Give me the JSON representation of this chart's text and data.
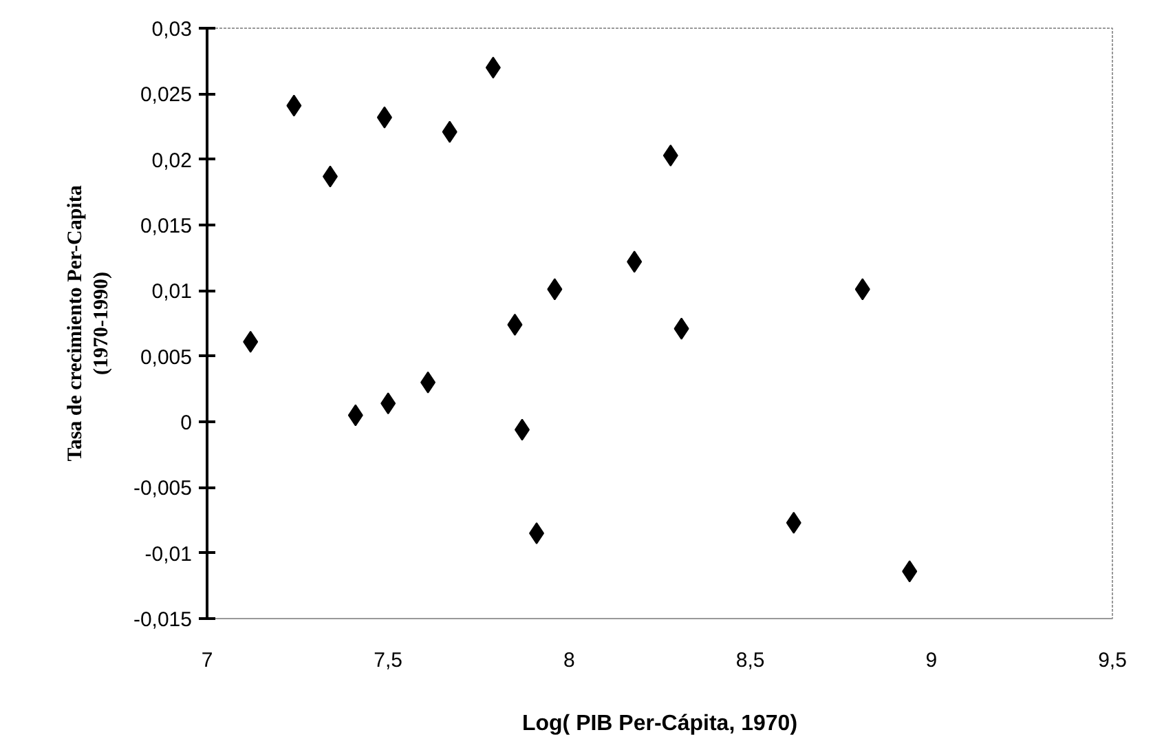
{
  "chart_data": {
    "type": "scatter",
    "xlabel": "Log( PIB Per-Cápita, 1970)",
    "ylabel": "Tasa de crecimiento Per-Capita\n(1970-1990)",
    "x": [
      7.12,
      7.24,
      7.34,
      7.41,
      7.49,
      7.5,
      7.61,
      7.67,
      7.79,
      7.85,
      7.87,
      7.91,
      7.96,
      8.18,
      8.28,
      8.31,
      8.62,
      8.81,
      8.94
    ],
    "series": [
      {
        "color": "#000000",
        "values": [
          0.0061,
          0.0241,
          0.0187,
          0.0005,
          0.0232,
          0.0014,
          0.003,
          0.0221,
          0.027,
          0.0074,
          -0.0006,
          -0.0085,
          0.0101,
          0.0122,
          0.0203,
          0.0071,
          -0.0077,
          0.0101,
          -0.0114
        ]
      }
    ],
    "xlim": [
      7,
      9.5
    ],
    "xticks": [
      7,
      {
        "value": 7.5,
        "label": "7,5"
      },
      8,
      {
        "value": 8.5,
        "label": "8,5"
      },
      9,
      {
        "value": 9.5,
        "label": "9,5"
      }
    ],
    "ylim": [
      -0.015,
      0.03
    ],
    "yticks": [
      {
        "value": -0.015,
        "label": "-0,015"
      },
      {
        "value": -0.01,
        "label": "-0,01"
      },
      {
        "value": -0.005,
        "label": "-0,005"
      },
      0,
      {
        "value": 0.005,
        "label": "0,005"
      },
      {
        "value": 0.01,
        "label": "0,01"
      },
      {
        "value": 0.015,
        "label": "0,015"
      },
      {
        "value": 0.02,
        "label": "0,02"
      },
      {
        "value": 0.025,
        "label": "0,025"
      },
      {
        "value": 0.03,
        "label": "0,03"
      }
    ],
    "marker": "diamond",
    "grid": false
  }
}
